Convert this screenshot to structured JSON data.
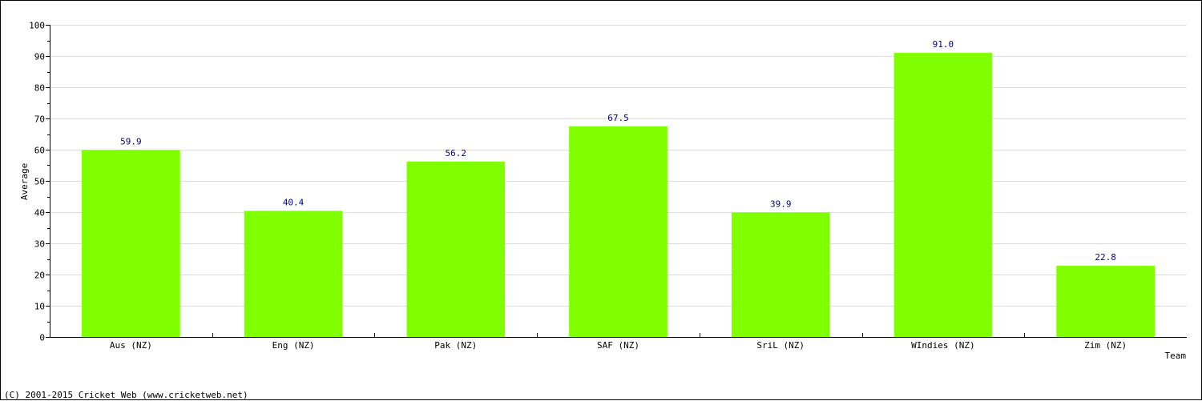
{
  "chart_data": {
    "type": "bar",
    "categories": [
      "Aus (NZ)",
      "Eng (NZ)",
      "Pak (NZ)",
      "SAF (NZ)",
      "SriL (NZ)",
      "WIndies (NZ)",
      "Zim (NZ)"
    ],
    "values": [
      59.9,
      40.4,
      56.2,
      67.5,
      39.9,
      91.0,
      22.8
    ],
    "value_labels": [
      "59.9",
      "40.4",
      "56.2",
      "67.5",
      "39.9",
      "91.0",
      "22.8"
    ],
    "xlabel": "Team",
    "ylabel": "Average",
    "ylim": [
      0,
      100
    ],
    "yticks": [
      0,
      10,
      20,
      30,
      40,
      50,
      60,
      70,
      80,
      90,
      100
    ],
    "grid": true,
    "bar_color": "#80ff00",
    "value_label_color": "#000080"
  },
  "footer": "(C) 2001-2015 Cricket Web (www.cricketweb.net)"
}
